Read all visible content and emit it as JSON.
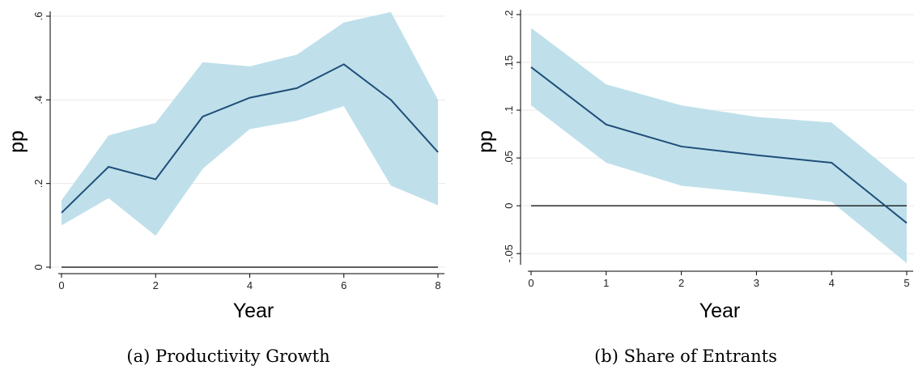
{
  "chart_data": [
    {
      "type": "line",
      "caption": "(a) Productivity Growth",
      "xlabel": "Year",
      "ylabel": "pp",
      "xlim": [
        0,
        8
      ],
      "ylim": [
        0,
        0.6
      ],
      "xticks": [
        "0",
        "2",
        "4",
        "6",
        "8"
      ],
      "yticks": [
        "0",
        ".2",
        ".4",
        ".6"
      ],
      "grid": true,
      "colors": {
        "band": "#bfe0ea",
        "line": "#1f4e79",
        "zero": "#000000"
      },
      "reference_line_y": 0,
      "x": [
        0,
        1,
        2,
        3,
        4,
        5,
        6,
        7,
        8
      ],
      "series": [
        {
          "values": [
            0.13,
            0.24,
            0.21,
            0.36,
            0.405,
            0.428,
            0.485,
            0.4,
            0.275
          ]
        },
        {
          "role": "lower",
          "values": [
            0.1,
            0.165,
            0.075,
            0.235,
            0.33,
            0.35,
            0.385,
            0.195,
            0.148
          ]
        },
        {
          "role": "upper",
          "values": [
            0.16,
            0.315,
            0.345,
            0.49,
            0.48,
            0.508,
            0.585,
            0.61,
            0.4
          ]
        }
      ]
    },
    {
      "type": "line",
      "caption": "(b) Share of Entrants",
      "xlabel": "Year",
      "ylabel": "pp",
      "xlim": [
        0,
        5
      ],
      "ylim": [
        -0.06,
        0.2
      ],
      "xticks": [
        "0",
        "1",
        "2",
        "3",
        "4",
        "5"
      ],
      "yticks": [
        "-.05",
        "0",
        ".05",
        ".1",
        ".15",
        ".2"
      ],
      "grid": true,
      "colors": {
        "band": "#bfe0ea",
        "line": "#1f4e79",
        "zero": "#000000"
      },
      "reference_line_y": 0,
      "x": [
        0,
        1,
        2,
        3,
        4,
        5
      ],
      "series": [
        {
          "values": [
            0.145,
            0.085,
            0.062,
            0.053,
            0.045,
            -0.018
          ]
        },
        {
          "role": "lower",
          "values": [
            0.105,
            0.045,
            0.021,
            0.013,
            0.004,
            -0.06
          ]
        },
        {
          "role": "upper",
          "values": [
            0.186,
            0.127,
            0.105,
            0.093,
            0.087,
            0.023
          ]
        }
      ]
    }
  ]
}
